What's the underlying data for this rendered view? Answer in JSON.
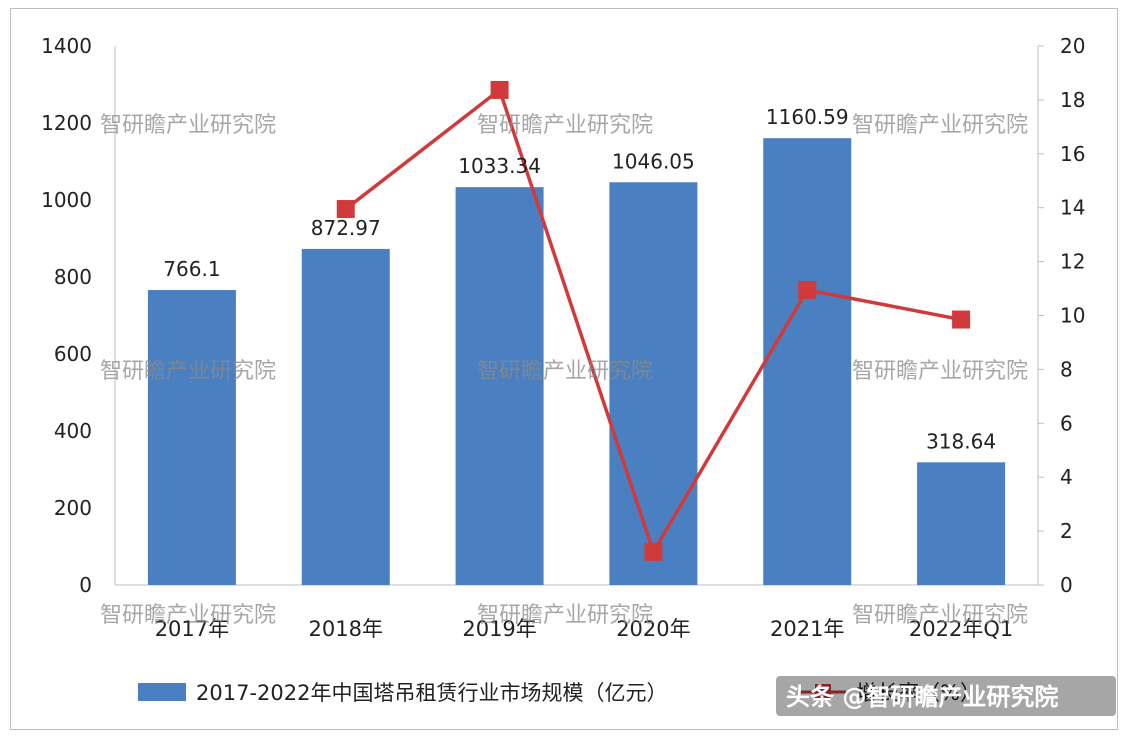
{
  "chart_data": {
    "type": "bar",
    "categories": [
      "2017年",
      "2018年",
      "2019年",
      "2020年",
      "2021年",
      "2022年Q1"
    ],
    "series": [
      {
        "name": "2017-2022年中国塔吊租赁行业市场规模（亿元）",
        "kind": "bar",
        "axis": "left",
        "color": "#4a7fc1",
        "values": [
          766.1,
          872.97,
          1033.34,
          1046.05,
          1160.59,
          318.64
        ],
        "labels": [
          "766.1",
          "872.97",
          "1033.34",
          "1046.05",
          "1160.59",
          "318.64"
        ]
      },
      {
        "name": "增长率（%）",
        "kind": "line",
        "axis": "right",
        "color": "#d03a3a",
        "values": [
          null,
          13.95,
          18.37,
          1.23,
          10.95,
          9.85
        ]
      }
    ],
    "y_left": {
      "min": 0,
      "max": 1400,
      "step": 200
    },
    "y_right": {
      "min": 0,
      "max": 20,
      "step": 2
    },
    "legend_position": "bottom"
  },
  "watermark": "智研瞻产业研究院",
  "brand_overlay": "头条 @智研瞻产业研究院"
}
